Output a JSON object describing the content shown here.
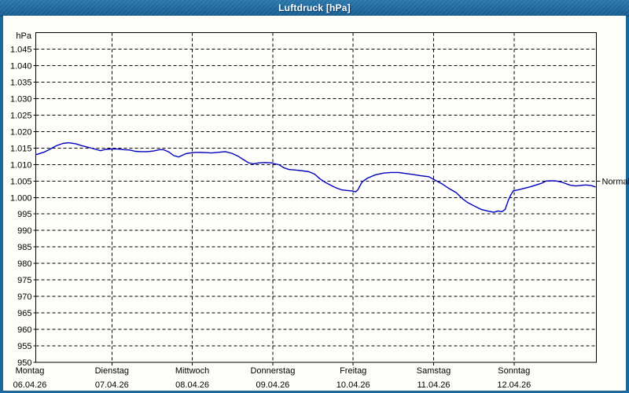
{
  "window": {
    "title": "Luftdruck [hPa]",
    "title_bar_color": "#1e6a9e",
    "frame_color": "#1d689c"
  },
  "chart_data": {
    "type": "line",
    "title": "Luftdruck [hPa]",
    "unit_label": "hPa",
    "line_color": "#0000c0",
    "grid": true,
    "ylim": [
      950,
      1050
    ],
    "y_tick_step": 5,
    "y_ticks": [
      {
        "label": "1.045",
        "value": 1045
      },
      {
        "label": "1.040",
        "value": 1040
      },
      {
        "label": "1.035",
        "value": 1035
      },
      {
        "label": "1.030",
        "value": 1030
      },
      {
        "label": "1.025",
        "value": 1025
      },
      {
        "label": "1.020",
        "value": 1020
      },
      {
        "label": "1.015",
        "value": 1015
      },
      {
        "label": "1.010",
        "value": 1010
      },
      {
        "label": "1.005",
        "value": 1005
      },
      {
        "label": "1.000",
        "value": 1000
      },
      {
        "label": "995",
        "value": 995
      },
      {
        "label": "990",
        "value": 990
      },
      {
        "label": "985",
        "value": 985
      },
      {
        "label": "980",
        "value": 980
      },
      {
        "label": "975",
        "value": 975
      },
      {
        "label": "970",
        "value": 970
      },
      {
        "label": "965",
        "value": 965
      },
      {
        "label": "960",
        "value": 960
      },
      {
        "label": "955",
        "value": 955
      },
      {
        "label": "950",
        "value": 950
      }
    ],
    "x_ticks": [
      {
        "name": "Montag",
        "date": "06.04.26"
      },
      {
        "name": "Dienstag",
        "date": "07.04.26"
      },
      {
        "name": "Mittwoch",
        "date": "08.04.26"
      },
      {
        "name": "Donnerstag",
        "date": "09.04.26"
      },
      {
        "name": "Freitag",
        "date": "10.04.26"
      },
      {
        "name": "Samstag",
        "date": "11.04.26"
      },
      {
        "name": "Sonntag",
        "date": "12.04.26"
      }
    ],
    "normal_marker": {
      "label": "Normal",
      "value_hpa": 1005
    },
    "series": [
      {
        "name": "Luftdruck",
        "x_unit": "days_since_monday_00",
        "points": [
          [
            0.06,
            1013.0
          ],
          [
            0.16,
            1013.8
          ],
          [
            0.22,
            1014.5
          ],
          [
            0.31,
            1015.7
          ],
          [
            0.39,
            1016.4
          ],
          [
            0.46,
            1016.6
          ],
          [
            0.55,
            1016.3
          ],
          [
            0.63,
            1015.7
          ],
          [
            0.71,
            1015.2
          ],
          [
            0.8,
            1014.6
          ],
          [
            0.86,
            1014.2
          ],
          [
            0.92,
            1014.6
          ],
          [
            1.0,
            1014.7
          ],
          [
            1.07,
            1014.7
          ],
          [
            1.15,
            1014.5
          ],
          [
            1.22,
            1014.4
          ],
          [
            1.29,
            1014.0
          ],
          [
            1.36,
            1013.9
          ],
          [
            1.44,
            1013.9
          ],
          [
            1.52,
            1014.1
          ],
          [
            1.59,
            1014.5
          ],
          [
            1.64,
            1014.5
          ],
          [
            1.71,
            1013.8
          ],
          [
            1.77,
            1012.7
          ],
          [
            1.83,
            1012.3
          ],
          [
            1.92,
            1013.3
          ],
          [
            2.0,
            1013.6
          ],
          [
            2.07,
            1013.7
          ],
          [
            2.17,
            1013.6
          ],
          [
            2.24,
            1013.5
          ],
          [
            2.32,
            1013.7
          ],
          [
            2.41,
            1013.9
          ],
          [
            2.49,
            1013.4
          ],
          [
            2.57,
            1012.5
          ],
          [
            2.64,
            1011.4
          ],
          [
            2.7,
            1010.5
          ],
          [
            2.76,
            1010.2
          ],
          [
            2.83,
            1010.5
          ],
          [
            2.91,
            1010.6
          ],
          [
            2.98,
            1010.5
          ],
          [
            3.01,
            1010.3
          ],
          [
            3.08,
            1009.9
          ],
          [
            3.14,
            1009.0
          ],
          [
            3.2,
            1008.5
          ],
          [
            3.29,
            1008.3
          ],
          [
            3.37,
            1008.1
          ],
          [
            3.45,
            1007.8
          ],
          [
            3.52,
            1007.1
          ],
          [
            3.59,
            1005.6
          ],
          [
            3.66,
            1004.5
          ],
          [
            3.73,
            1003.6
          ],
          [
            3.79,
            1002.9
          ],
          [
            3.86,
            1002.3
          ],
          [
            3.93,
            1002.1
          ],
          [
            3.99,
            1002.0
          ],
          [
            4.03,
            1001.7
          ],
          [
            4.06,
            1002.4
          ],
          [
            4.11,
            1004.7
          ],
          [
            4.18,
            1005.9
          ],
          [
            4.28,
            1006.9
          ],
          [
            4.38,
            1007.4
          ],
          [
            4.47,
            1007.6
          ],
          [
            4.56,
            1007.6
          ],
          [
            4.64,
            1007.3
          ],
          [
            4.74,
            1007.0
          ],
          [
            4.84,
            1006.6
          ],
          [
            4.94,
            1006.3
          ],
          [
            5.0,
            1005.5
          ],
          [
            5.1,
            1004.2
          ],
          [
            5.18,
            1002.9
          ],
          [
            5.28,
            1001.5
          ],
          [
            5.36,
            999.6
          ],
          [
            5.42,
            998.5
          ],
          [
            5.49,
            997.6
          ],
          [
            5.59,
            996.4
          ],
          [
            5.67,
            995.9
          ],
          [
            5.75,
            995.5
          ],
          [
            5.8,
            995.9
          ],
          [
            5.85,
            995.7
          ],
          [
            5.89,
            996.4
          ],
          [
            5.93,
            999.2
          ],
          [
            5.96,
            1000.8
          ],
          [
            5.99,
            1002.0
          ],
          [
            6.08,
            1002.5
          ],
          [
            6.21,
            1003.3
          ],
          [
            6.34,
            1004.3
          ],
          [
            6.4,
            1005.0
          ],
          [
            6.47,
            1005.1
          ],
          [
            6.53,
            1005.0
          ],
          [
            6.6,
            1004.6
          ],
          [
            6.7,
            1003.7
          ],
          [
            6.77,
            1003.5
          ],
          [
            6.82,
            1003.6
          ],
          [
            6.89,
            1003.8
          ],
          [
            6.96,
            1003.6
          ],
          [
            7.01,
            1003.2
          ]
        ]
      }
    ]
  }
}
